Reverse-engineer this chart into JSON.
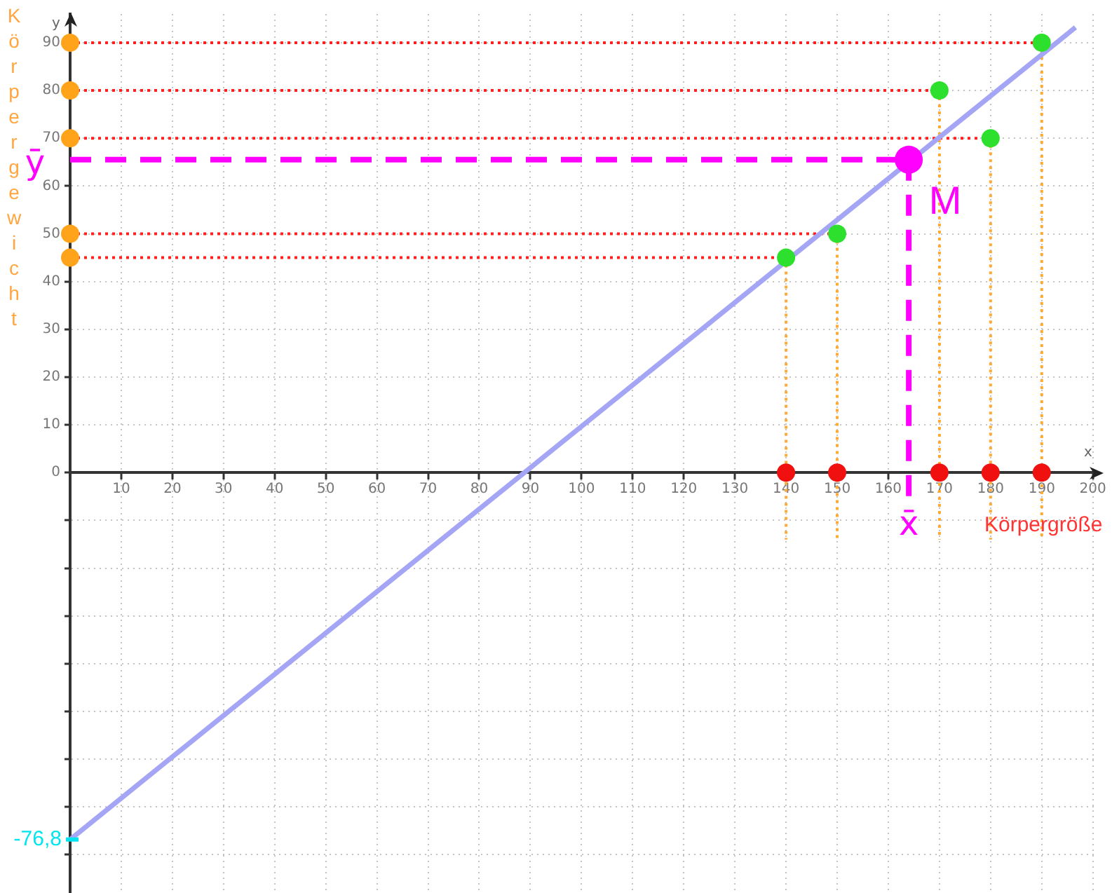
{
  "chart_data": {
    "type": "scatter",
    "xlabel": "Körpergröße",
    "ylabel": "Körpergewicht",
    "annotations": [
      "x",
      "y",
      {
        "text": "-76,8",
        "x": 0,
        "y": -76.8
      }
    ],
    "xlim": [
      0,
      201
    ],
    "ylim": [
      -88,
      96
    ],
    "xticks": [
      10,
      20,
      30,
      40,
      50,
      60,
      70,
      80,
      90,
      100,
      110,
      120,
      130,
      140,
      150,
      160,
      170,
      180,
      190,
      200
    ],
    "yticks": [
      {
        "value": -80,
        "label": null
      },
      {
        "value": -70,
        "label": null
      },
      {
        "value": -60,
        "label": null
      },
      {
        "value": -50,
        "label": null
      },
      {
        "value": -40,
        "label": null
      },
      {
        "value": -30,
        "label": null
      },
      {
        "value": -20,
        "label": null
      },
      {
        "value": -10,
        "label": null
      },
      0,
      10,
      20,
      30,
      40,
      50,
      60,
      70,
      80,
      90
    ],
    "grid": true,
    "series": [
      {
        "type": "line",
        "color": "#ff2020",
        "line_style": "dotted",
        "marker": "none",
        "x": [
          0,
          140
        ],
        "values": [
          45,
          45
        ]
      },
      {
        "type": "line",
        "color": "#ff2020",
        "line_style": "dotted",
        "marker": "none",
        "x": [
          0,
          150
        ],
        "values": [
          50,
          50
        ]
      },
      {
        "type": "line",
        "color": "#ff2020",
        "line_style": "dotted",
        "marker": "none",
        "x": [
          0,
          170
        ],
        "values": [
          80,
          80
        ]
      },
      {
        "type": "line",
        "color": "#ff2020",
        "line_style": "dotted",
        "marker": "none",
        "x": [
          0,
          180
        ],
        "values": [
          70,
          70
        ]
      },
      {
        "type": "line",
        "color": "#ff2020",
        "line_style": "dotted",
        "marker": "none",
        "x": [
          0,
          190
        ],
        "values": [
          90,
          90
        ]
      },
      {
        "type": "line",
        "color": "#ffaa33",
        "line_style": "dotted",
        "marker": "none",
        "x": [
          140,
          140
        ],
        "values": [
          45,
          -14
        ]
      },
      {
        "type": "line",
        "color": "#ffaa33",
        "line_style": "dotted",
        "marker": "none",
        "x": [
          150,
          150
        ],
        "values": [
          50,
          -14
        ]
      },
      {
        "type": "line",
        "color": "#ffaa33",
        "line_style": "dotted",
        "marker": "none",
        "x": [
          170,
          170
        ],
        "values": [
          80,
          -14
        ]
      },
      {
        "type": "line",
        "color": "#ffaa33",
        "line_style": "dotted",
        "marker": "none",
        "x": [
          180,
          180
        ],
        "values": [
          70,
          -14
        ]
      },
      {
        "type": "line",
        "color": "#ffaa33",
        "line_style": "dotted",
        "marker": "none",
        "x": [
          190,
          190
        ],
        "values": [
          90,
          -14
        ]
      },
      {
        "type": "line",
        "color": "#a5a5f5",
        "line_style": "solid",
        "marker": "none",
        "x": [
          0,
          196.6
        ],
        "values": [
          -76.8,
          93.2
        ]
      },
      {
        "type": "line",
        "name": "ȳ",
        "color": "#ff00ff",
        "line_style": "dashed",
        "marker": "none",
        "x": [
          0,
          164
        ],
        "values": [
          65.5,
          65.5
        ]
      },
      {
        "type": "line",
        "name": "x̄",
        "color": "#ff00ff",
        "line_style": "dashed",
        "marker": "none",
        "x": [
          164,
          164
        ],
        "values": [
          65.5,
          -5
        ]
      },
      {
        "type": "scatter",
        "color": "#ffa31a",
        "marker": "circle",
        "x": [
          0,
          0,
          0,
          0,
          0
        ],
        "values": [
          90,
          80,
          70,
          50,
          45
        ]
      },
      {
        "type": "scatter",
        "color": "#f01010",
        "marker": "circle",
        "x": [
          140,
          150,
          170,
          180,
          190
        ],
        "values": [
          0,
          0,
          0,
          0,
          0
        ]
      },
      {
        "type": "scatter",
        "color": "#2ee02e",
        "marker": "circle",
        "x": [
          140,
          150,
          170,
          180,
          190
        ],
        "values": [
          45,
          50,
          80,
          70,
          90
        ]
      },
      {
        "type": "scatter",
        "name": "M",
        "color": "#ff00ff",
        "marker": "circle",
        "x": [
          164
        ],
        "values": [
          65.5
        ]
      }
    ]
  }
}
